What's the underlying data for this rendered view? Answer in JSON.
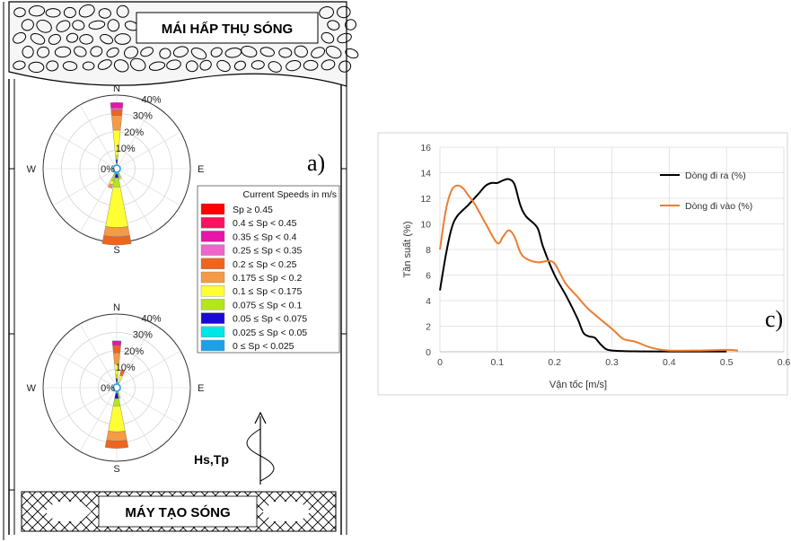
{
  "panel_a": {
    "top_banner": "MÁI HẤP THỤ SÓNG",
    "bottom_banner": "MÁY TẠO SÓNG",
    "panel_label": "a)",
    "wave_label": "Hs,Tp",
    "compass": {
      "n": "N",
      "s": "S",
      "e": "E",
      "w": "W"
    },
    "ring_labels": [
      "10%",
      "20%",
      "30%",
      "40%"
    ],
    "center_label": "0%",
    "legend": {
      "title": "Current Speeds in m/s",
      "entries": [
        {
          "label": "Sp ≥ 0.45",
          "color": "#ff0000"
        },
        {
          "label": "0.4 ≤ Sp < 0.45",
          "color": "#ff1060"
        },
        {
          "label": "0.35 ≤ Sp < 0.4",
          "color": "#e616a6"
        },
        {
          "label": "0.25 ≤ Sp < 0.35",
          "color": "#ee66cc"
        },
        {
          "label": "0.2 ≤ Sp < 0.25",
          "color": "#f0641e"
        },
        {
          "label": "0.175 ≤ Sp < 0.2",
          "color": "#f59a46"
        },
        {
          "label": "0.1 ≤ Sp < 0.175",
          "color": "#ffff33"
        },
        {
          "label": "0.075 ≤ Sp < 0.1",
          "color": "#b4e61e"
        },
        {
          "label": "0.05 ≤ Sp < 0.075",
          "color": "#1a0ad2"
        },
        {
          "label": "0.025 ≤ Sp < 0.05",
          "color": "#00e6e6"
        },
        {
          "label": "0 ≤ Sp < 0.025",
          "color": "#1ea0e6"
        }
      ]
    }
  },
  "chart_data": [
    {
      "type": "rose",
      "name": "upper",
      "rmax_percent": 40,
      "sectors": [
        {
          "dir_deg": 0,
          "width_deg": 11,
          "stacks": [
            {
              "bin": 10,
              "value": 1.5
            },
            {
              "bin": 9,
              "value": 1.5
            },
            {
              "bin": 8,
              "value": 2
            },
            {
              "bin": 7,
              "value": 2
            },
            {
              "bin": 6,
              "value": 14
            },
            {
              "bin": 5,
              "value": 8
            },
            {
              "bin": 4,
              "value": 3
            },
            {
              "bin": 3,
              "value": 1
            },
            {
              "bin": 2,
              "value": 3
            }
          ]
        },
        {
          "dir_deg": 180,
          "width_deg": 22,
          "stacks": [
            {
              "bin": 10,
              "value": 1.5
            },
            {
              "bin": 9,
              "value": 1.5
            },
            {
              "bin": 8,
              "value": 2
            },
            {
              "bin": 7,
              "value": 5
            },
            {
              "bin": 6,
              "value": 22
            },
            {
              "bin": 5,
              "value": 5
            },
            {
              "bin": 4,
              "value": 4.5
            }
          ]
        },
        {
          "dir_deg": 200,
          "width_deg": 12,
          "stacks": [
            {
              "bin": 10,
              "value": 1.5
            },
            {
              "bin": 9,
              "value": 1.5
            },
            {
              "bin": 7,
              "value": 4
            },
            {
              "bin": 6,
              "value": 2
            },
            {
              "bin": 5,
              "value": 2
            }
          ]
        },
        {
          "dir_deg": 160,
          "width_deg": 12,
          "stacks": [
            {
              "bin": 10,
              "value": 1.5
            },
            {
              "bin": 9,
              "value": 1.5
            },
            {
              "bin": 7,
              "value": 2
            },
            {
              "bin": 6,
              "value": 1
            }
          ]
        }
      ]
    },
    {
      "type": "rose",
      "name": "lower",
      "rmax_percent": 40,
      "sectors": [
        {
          "dir_deg": 0,
          "width_deg": 11,
          "stacks": [
            {
              "bin": 10,
              "value": 1.5
            },
            {
              "bin": 9,
              "value": 1.5
            },
            {
              "bin": 8,
              "value": 2
            },
            {
              "bin": 7,
              "value": 2
            },
            {
              "bin": 6,
              "value": 6
            },
            {
              "bin": 5,
              "value": 6
            },
            {
              "bin": 4,
              "value": 4
            },
            {
              "bin": 2,
              "value": 2.5
            }
          ]
        },
        {
          "dir_deg": 20,
          "width_deg": 12,
          "stacks": [
            {
              "bin": 10,
              "value": 1.5
            },
            {
              "bin": 9,
              "value": 1.5
            },
            {
              "bin": 6,
              "value": 4
            },
            {
              "bin": 4,
              "value": 3
            }
          ]
        },
        {
          "dir_deg": 180,
          "width_deg": 22,
          "stacks": [
            {
              "bin": 10,
              "value": 1.5
            },
            {
              "bin": 9,
              "value": 1.5
            },
            {
              "bin": 8,
              "value": 3
            },
            {
              "bin": 7,
              "value": 4
            },
            {
              "bin": 6,
              "value": 14
            },
            {
              "bin": 5,
              "value": 5
            },
            {
              "bin": 4,
              "value": 4
            }
          ]
        },
        {
          "dir_deg": 165,
          "width_deg": 10,
          "stacks": [
            {
              "bin": 10,
              "value": 1.5
            },
            {
              "bin": 9,
              "value": 1.5
            },
            {
              "bin": 7,
              "value": 3
            }
          ]
        }
      ]
    },
    {
      "type": "line",
      "panel_label": "c)",
      "xlabel": "Vận tốc [m/s]",
      "ylabel": "Tần suất  (%)",
      "xlim": [
        0,
        0.6
      ],
      "ylim": [
        0,
        16
      ],
      "xticks": [
        "0",
        "0.1",
        "0.2",
        "0.3",
        "0.4",
        "0.5",
        "0.6"
      ],
      "yticks": [
        "0",
        "2",
        "4",
        "6",
        "8",
        "10",
        "12",
        "14",
        "16"
      ],
      "grid": true,
      "legend_position": "top-right",
      "series": [
        {
          "name": "Dòng đi ra (%)",
          "color": "#000000",
          "x": [
            0,
            0.01,
            0.02,
            0.03,
            0.05,
            0.07,
            0.08,
            0.09,
            0.1,
            0.11,
            0.12,
            0.13,
            0.14,
            0.15,
            0.17,
            0.18,
            0.2,
            0.22,
            0.24,
            0.25,
            0.26,
            0.27,
            0.28,
            0.29,
            0.3,
            0.32,
            0.35,
            0.4,
            0.5
          ],
          "y": [
            4.8,
            7.5,
            9.6,
            10.6,
            11.5,
            12.5,
            13.0,
            13.2,
            13.2,
            13.4,
            13.5,
            13.1,
            11.5,
            10.6,
            9.7,
            8.2,
            6.0,
            4.4,
            2.6,
            1.5,
            1.2,
            1.1,
            0.6,
            0.2,
            0.1,
            0.05,
            0.03,
            0.02,
            0.02
          ]
        },
        {
          "name": "Dòng đi vào (%)",
          "color": "#ed7d31",
          "x": [
            0,
            0.01,
            0.02,
            0.03,
            0.04,
            0.05,
            0.06,
            0.08,
            0.1,
            0.11,
            0.12,
            0.13,
            0.14,
            0.15,
            0.17,
            0.19,
            0.2,
            0.21,
            0.22,
            0.24,
            0.26,
            0.3,
            0.32,
            0.34,
            0.37,
            0.4,
            0.45,
            0.5,
            0.52
          ],
          "y": [
            8.0,
            11.0,
            12.6,
            13.0,
            12.8,
            12.2,
            11.6,
            10.0,
            8.5,
            9.0,
            9.5,
            9.0,
            7.8,
            7.3,
            7.0,
            7.1,
            6.9,
            6.1,
            5.3,
            4.3,
            3.3,
            1.8,
            1.0,
            0.8,
            0.3,
            0.1,
            0.1,
            0.15,
            0.1
          ]
        }
      ]
    }
  ]
}
